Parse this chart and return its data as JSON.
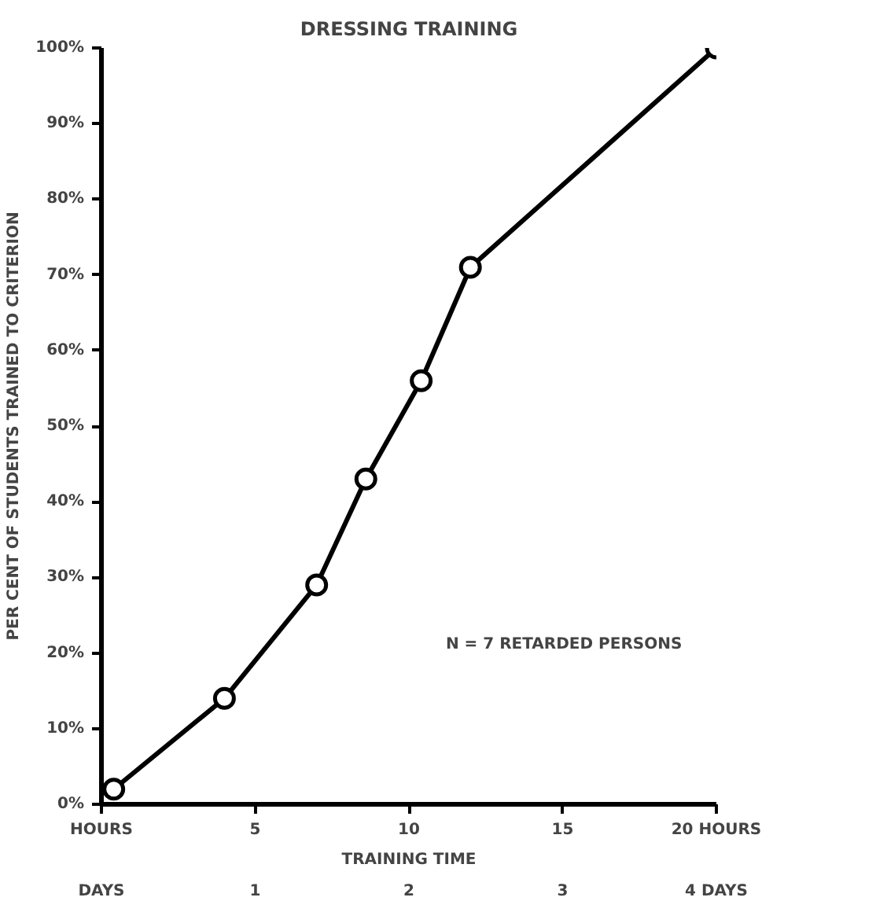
{
  "chart_data": {
    "type": "line",
    "title": "DRESSING TRAINING",
    "xlabel": "TRAINING TIME",
    "ylabel": "PER CENT OF STUDENTS TRAINED TO CRITERION",
    "x": [
      0.4,
      4,
      7,
      8.6,
      10.4,
      12,
      20
    ],
    "series": [
      {
        "color": "#000000",
        "values": [
          2,
          14,
          29,
          43,
          56,
          71,
          100
        ]
      }
    ],
    "xlim": [
      0,
      20
    ],
    "ylim": [
      0,
      100
    ],
    "xticks": [
      {
        "value": 0,
        "label": "HOURS"
      },
      5,
      10,
      15,
      {
        "value": 20,
        "label": "20 HOURS"
      }
    ],
    "x2lim": [
      0,
      4
    ],
    "x2ticks": [
      {
        "value": 0,
        "label": "DAYS"
      },
      1,
      2,
      3,
      {
        "value": 4,
        "label": "4 DAYS"
      }
    ],
    "yticks": [
      {
        "value": 0,
        "label": "0%"
      },
      {
        "value": 10,
        "label": "10%"
      },
      {
        "value": 20,
        "label": "20%"
      },
      {
        "value": 30,
        "label": "30%"
      },
      {
        "value": 40,
        "label": "40%"
      },
      {
        "value": 50,
        "label": "50%"
      },
      {
        "value": 60,
        "label": "60%"
      },
      {
        "value": 70,
        "label": "70%"
      },
      {
        "value": 80,
        "label": "80%"
      },
      {
        "value": 90,
        "label": "90%"
      },
      {
        "value": 100,
        "label": "100%"
      }
    ],
    "annotations": [
      "N = 7 RETARDED PERSONS"
    ],
    "marker": "circle",
    "line_style": "solid",
    "grid": false
  }
}
